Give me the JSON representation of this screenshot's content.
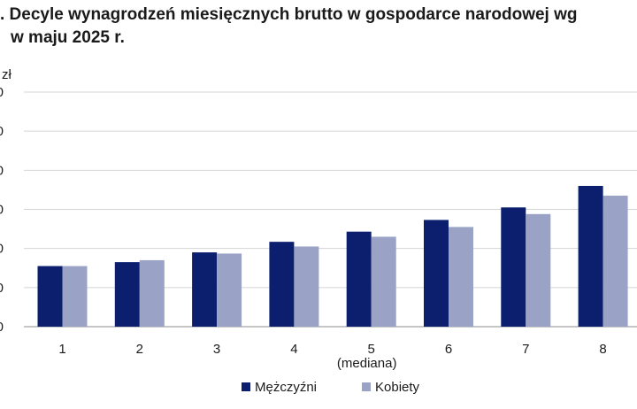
{
  "chart_data": {
    "type": "bar",
    "title_line1": ". Decyle wynagrodzeń miesięcznych brutto w gospodarce narodowej wg",
    "title_line2": "w maju 2025 r.",
    "unit_label": "zł",
    "categories": [
      "1",
      "2",
      "3",
      "4",
      "5",
      "6",
      "7",
      "8"
    ],
    "median_note": "(mediana)",
    "series": [
      {
        "name": "Mężczyźni",
        "color": "#0b1f6e",
        "values": [
          1.55,
          1.65,
          1.9,
          2.17,
          2.43,
          2.73,
          3.05,
          3.6
        ]
      },
      {
        "name": "Kobiety",
        "color": "#9aa3c6",
        "values": [
          1.55,
          1.7,
          1.87,
          2.05,
          2.3,
          2.55,
          2.88,
          3.35
        ]
      }
    ],
    "ylim": [
      0,
      6
    ],
    "grid": true,
    "legend_position": "bottom-center"
  }
}
